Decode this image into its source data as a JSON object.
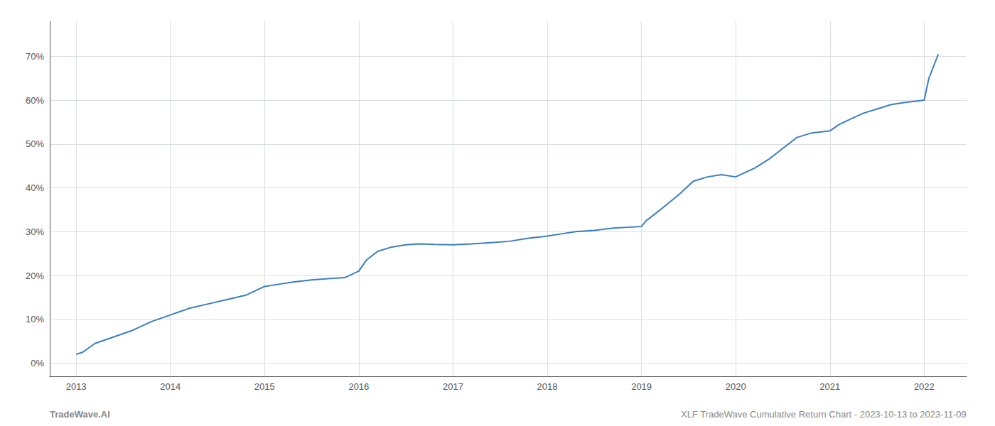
{
  "chart_data": {
    "type": "line",
    "x": [
      2013.0,
      2013.07,
      2013.2,
      2013.4,
      2013.6,
      2013.8,
      2014.0,
      2014.2,
      2014.4,
      2014.6,
      2014.8,
      2015.0,
      2015.15,
      2015.3,
      2015.5,
      2015.7,
      2015.85,
      2016.0,
      2016.08,
      2016.2,
      2016.35,
      2016.5,
      2016.65,
      2016.8,
      2017.0,
      2017.2,
      2017.4,
      2017.6,
      2017.8,
      2018.0,
      2018.15,
      2018.3,
      2018.5,
      2018.7,
      2018.85,
      2019.0,
      2019.05,
      2019.2,
      2019.4,
      2019.55,
      2019.7,
      2019.85,
      2020.0,
      2020.1,
      2020.2,
      2020.35,
      2020.5,
      2020.65,
      2020.8,
      2021.0,
      2021.1,
      2021.2,
      2021.35,
      2021.5,
      2021.65,
      2021.8,
      2022.0,
      2022.05,
      2022.15
    ],
    "values": [
      2.0,
      2.5,
      4.5,
      6.0,
      7.5,
      9.5,
      11.0,
      12.5,
      13.5,
      14.5,
      15.5,
      17.5,
      18.0,
      18.5,
      19.0,
      19.3,
      19.5,
      21.0,
      23.5,
      25.5,
      26.5,
      27.0,
      27.2,
      27.1,
      27.0,
      27.2,
      27.5,
      27.8,
      28.5,
      29.0,
      29.5,
      30.0,
      30.3,
      30.8,
      31.0,
      31.2,
      32.5,
      35.0,
      38.5,
      41.5,
      42.5,
      43.0,
      42.5,
      43.5,
      44.5,
      46.5,
      49.0,
      51.5,
      52.5,
      53.0,
      54.5,
      55.5,
      57.0,
      58.0,
      59.0,
      59.5,
      60.0,
      65.0,
      70.5
    ],
    "color": "#3a7ebf",
    "xlim": [
      2012.72,
      2022.45
    ],
    "xticks": [
      2013,
      2014,
      2015,
      2016,
      2017,
      2018,
      2019,
      2020,
      2021,
      2022
    ],
    "ylim": [
      -3,
      78
    ],
    "yticks": [
      {
        "value": 0,
        "label": "0%"
      },
      {
        "value": 10,
        "label": "10%"
      },
      {
        "value": 20,
        "label": "20%"
      },
      {
        "value": 30,
        "label": "30%"
      },
      {
        "value": 40,
        "label": "40%"
      },
      {
        "value": 50,
        "label": "50%"
      },
      {
        "value": 60,
        "label": "60%"
      },
      {
        "value": 70,
        "label": "70%"
      }
    ],
    "grid": true,
    "annotations": [
      "TradeWave.AI",
      "XLF TradeWave Cumulative Return Chart - 2023-10-13 to 2023-11-09"
    ]
  }
}
